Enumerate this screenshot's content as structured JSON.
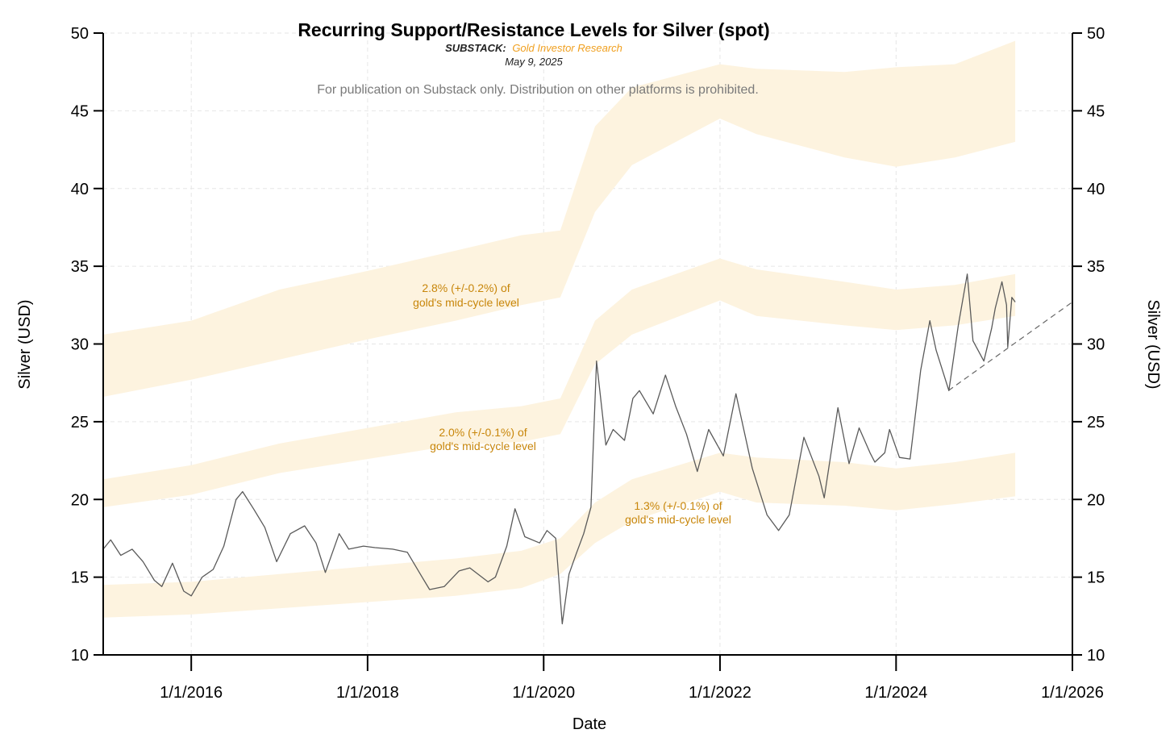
{
  "header": {
    "title": "Recurring Support/Resistance Levels for Silver (spot)",
    "substack_label": "SUBSTACK:",
    "substack_name": "Gold Investor Research",
    "date": "May 9, 2025",
    "notice": "For publication on Substack only. Distribution on other platforms is prohibited."
  },
  "colors": {
    "band": "#fdf3df",
    "price_line": "#5a5a5a",
    "band_label": "#c8860a",
    "substack_name": "#f0a020",
    "grid": "#e6e6e6"
  },
  "chart_data": {
    "type": "line",
    "xlabel": "Date",
    "ylabel_left": "Silver (USD)",
    "ylabel_right": "Silver (USD)",
    "xlim": [
      "2015-01-01",
      "2026-01-01"
    ],
    "ylim": [
      10,
      50
    ],
    "grid": true,
    "x_ticks": [
      "1/1/2016",
      "1/1/2018",
      "1/1/2020",
      "1/1/2022",
      "1/1/2024",
      "1/1/2026"
    ],
    "y_ticks": [
      "10",
      "15",
      "20",
      "25",
      "30",
      "35",
      "40",
      "45",
      "50"
    ],
    "series": [
      {
        "name": "",
        "x": [
          "2015-01-01",
          "2015-02-01",
          "2015-03-15",
          "2015-05-01",
          "2015-06-15",
          "2015-08-01",
          "2015-09-01",
          "2015-10-15",
          "2015-12-01",
          "2016-01-01",
          "2016-02-15",
          "2016-04-01",
          "2016-05-15",
          "2016-07-05",
          "2016-08-01",
          "2016-09-15",
          "2016-11-01",
          "2016-12-20",
          "2017-02-15",
          "2017-04-15",
          "2017-06-01",
          "2017-07-10",
          "2017-09-05",
          "2017-10-15",
          "2017-12-15",
          "2018-02-01",
          "2018-04-15",
          "2018-06-15",
          "2018-08-15",
          "2018-09-15",
          "2018-11-15",
          "2019-01-15",
          "2019-03-01",
          "2019-05-15",
          "2019-06-15",
          "2019-08-01",
          "2019-09-04",
          "2019-10-15",
          "2019-12-15",
          "2020-01-15",
          "2020-02-20",
          "2020-03-18",
          "2020-04-15",
          "2020-05-15",
          "2020-06-15",
          "2020-07-15",
          "2020-08-07",
          "2020-09-15",
          "2020-10-15",
          "2020-12-01",
          "2021-01-05",
          "2021-02-01",
          "2021-03-30",
          "2021-05-20",
          "2021-07-01",
          "2021-08-15",
          "2021-09-29",
          "2021-11-15",
          "2022-01-15",
          "2022-03-08",
          "2022-05-15",
          "2022-07-15",
          "2022-09-01",
          "2022-10-15",
          "2022-12-15",
          "2023-02-15",
          "2023-03-09",
          "2023-05-05",
          "2023-06-20",
          "2023-08-01",
          "2023-09-15",
          "2023-10-05",
          "2023-11-15",
          "2023-12-05",
          "2024-01-15",
          "2024-02-28",
          "2024-04-12",
          "2024-05-20",
          "2024-06-15",
          "2024-08-07",
          "2024-09-15",
          "2024-10-22",
          "2024-11-15",
          "2024-12-30",
          "2025-01-31",
          "2025-02-15",
          "2025-03-15",
          "2025-04-03",
          "2025-04-08",
          "2025-04-25",
          "2025-05-09"
        ],
        "y": [
          16.8,
          17.4,
          16.4,
          16.8,
          16.0,
          14.8,
          14.4,
          15.9,
          14.1,
          13.8,
          15.0,
          15.5,
          17.0,
          20.0,
          20.5,
          19.4,
          18.2,
          16.0,
          17.8,
          18.3,
          17.2,
          15.3,
          17.8,
          16.8,
          17.0,
          16.9,
          16.8,
          16.6,
          15.0,
          14.2,
          14.4,
          15.4,
          15.6,
          14.7,
          15.0,
          17.0,
          19.4,
          17.6,
          17.2,
          18.0,
          17.5,
          12.0,
          15.2,
          16.5,
          17.8,
          19.5,
          28.9,
          23.5,
          24.5,
          23.8,
          26.5,
          27.0,
          25.5,
          28.0,
          26.0,
          24.2,
          21.8,
          24.5,
          22.8,
          26.8,
          22.0,
          19.0,
          18.0,
          19.0,
          24.0,
          21.5,
          20.1,
          25.9,
          22.3,
          24.6,
          23.0,
          22.4,
          23.0,
          24.5,
          22.7,
          22.6,
          28.3,
          31.5,
          29.6,
          27.0,
          31.2,
          34.5,
          30.2,
          28.9,
          31.0,
          32.3,
          34.0,
          32.5,
          29.8,
          33.0,
          32.7
        ]
      }
    ],
    "bands": [
      {
        "label_line1": "1.3% (+/-0.1%) of",
        "label_line2": "gold's mid-cycle level",
        "x": [
          "2015-01-01",
          "2016-01-01",
          "2017-01-01",
          "2018-01-01",
          "2019-01-01",
          "2019-10-01",
          "2020-03-10",
          "2020-08-01",
          "2021-01-01",
          "2022-01-01",
          "2022-06-01",
          "2023-06-01",
          "2024-01-01",
          "2024-09-01",
          "2025-05-09"
        ],
        "upper": [
          14.5,
          14.7,
          15.2,
          15.7,
          16.2,
          16.7,
          17.5,
          19.8,
          21.3,
          23.0,
          22.7,
          22.4,
          22.0,
          22.4,
          23.0
        ],
        "lower": [
          12.4,
          12.6,
          13.0,
          13.4,
          13.8,
          14.3,
          15.2,
          17.2,
          18.6,
          20.5,
          19.8,
          19.6,
          19.3,
          19.7,
          20.2
        ]
      },
      {
        "label_line1": "2.0% (+/-0.1%) of",
        "label_line2": "gold's mid-cycle level",
        "x": [
          "2015-01-01",
          "2016-01-01",
          "2017-01-01",
          "2018-01-01",
          "2019-01-01",
          "2019-10-01",
          "2020-03-10",
          "2020-08-01",
          "2021-01-01",
          "2022-01-01",
          "2022-06-01",
          "2023-06-01",
          "2024-01-01",
          "2024-09-01",
          "2025-05-09"
        ],
        "upper": [
          21.3,
          22.2,
          23.6,
          24.6,
          25.6,
          26.0,
          26.5,
          31.5,
          33.5,
          35.5,
          34.8,
          34.0,
          33.5,
          33.8,
          34.5
        ],
        "lower": [
          19.5,
          20.3,
          21.7,
          22.6,
          23.5,
          23.7,
          24.2,
          28.7,
          30.6,
          32.8,
          31.8,
          31.2,
          30.9,
          31.2,
          31.8
        ]
      },
      {
        "label_line1": "2.8% (+/-0.2%) of",
        "label_line2": "gold's mid-cycle level",
        "x": [
          "2015-01-01",
          "2016-01-01",
          "2017-01-01",
          "2018-01-01",
          "2019-01-01",
          "2019-10-01",
          "2020-03-10",
          "2020-08-01",
          "2021-01-01",
          "2022-01-01",
          "2022-06-01",
          "2023-06-01",
          "2024-01-01",
          "2024-09-01",
          "2025-05-09"
        ],
        "upper": [
          30.6,
          31.5,
          33.5,
          34.7,
          36.0,
          37.0,
          37.3,
          44.0,
          46.5,
          48.0,
          47.7,
          47.5,
          47.8,
          48.0,
          49.5
        ],
        "lower": [
          26.6,
          27.7,
          29.0,
          30.3,
          31.5,
          32.5,
          33.0,
          38.5,
          41.5,
          44.5,
          43.5,
          42.0,
          41.4,
          42.0,
          43.0
        ]
      }
    ],
    "trendline": {
      "x": [
        "2024-08-05",
        "2026-01-01"
      ],
      "y": [
        27.0,
        32.7
      ]
    }
  }
}
